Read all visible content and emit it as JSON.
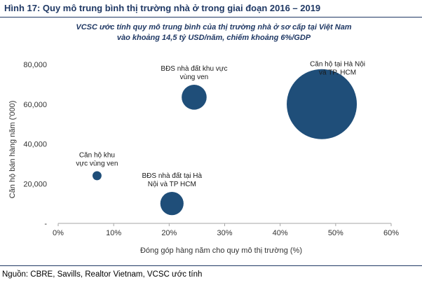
{
  "figure": {
    "title": "Hình 17: Quy mô trung bình thị trường nhà ở trong giai đoạn 2016 – 2019",
    "subtitle_line1": "VCSC ước tính quy mô trung bình của thị trường nhà ở sơ cấp tại Việt Nam",
    "subtitle_line2": "vào khoảng 14,5 tỷ USD/năm, chiếm khoảng 6%/GDP",
    "source": "Nguồn: CBRE, Savills, Realtor Vietnam, VCSC ước tính"
  },
  "chart_data": {
    "type": "scatter",
    "subtype": "bubble",
    "bubble_color": "#1f4e79",
    "xlabel": "Đóng góp hàng năm cho quy mô thị trường (%)",
    "ylabel": "Căn hộ bán hàng năm ('000)",
    "xlim": [
      0,
      60
    ],
    "ylim": [
      0,
      80000
    ],
    "x_ticks": [
      0,
      10,
      20,
      30,
      40,
      50,
      60
    ],
    "x_tick_labels": [
      "0%",
      "10%",
      "20%",
      "30%",
      "40%",
      "50%",
      "60%"
    ],
    "y_ticks": [
      0,
      20000,
      40000,
      60000,
      80000
    ],
    "y_tick_labels": [
      "-",
      "20,000",
      "40,000",
      "60,000",
      "80,000"
    ],
    "grid": false,
    "points": [
      {
        "name": "Căn hộ khu vực vùng ven",
        "label_lines": [
          "Căn hộ khu",
          "vực vùng ven"
        ],
        "x": 7,
        "y": 24000,
        "size": 0.5,
        "label_pos": "above"
      },
      {
        "name": "BĐS nhà đất tại Hà Nội và TP HCM",
        "label_lines": [
          "BĐS nhà đất tại Hà",
          "Nội và TP HCM"
        ],
        "x": 20.5,
        "y": 10000,
        "size": 3.3,
        "label_pos": "above"
      },
      {
        "name": "BĐS nhà đất khu vực vùng ven",
        "label_lines": [
          "BĐS nhà đất khu vực",
          "vùng ven"
        ],
        "x": 24.5,
        "y": 63500,
        "size": 3.8,
        "label_pos": "above"
      },
      {
        "name": "Căn hộ tại Hà Nội và TP. HCM",
        "label_lines": [
          "Căn hộ tại Hà Nội",
          "và TP. HCM"
        ],
        "x": 47.5,
        "y": 60000,
        "size": 30,
        "label_pos": "above-right"
      }
    ]
  }
}
